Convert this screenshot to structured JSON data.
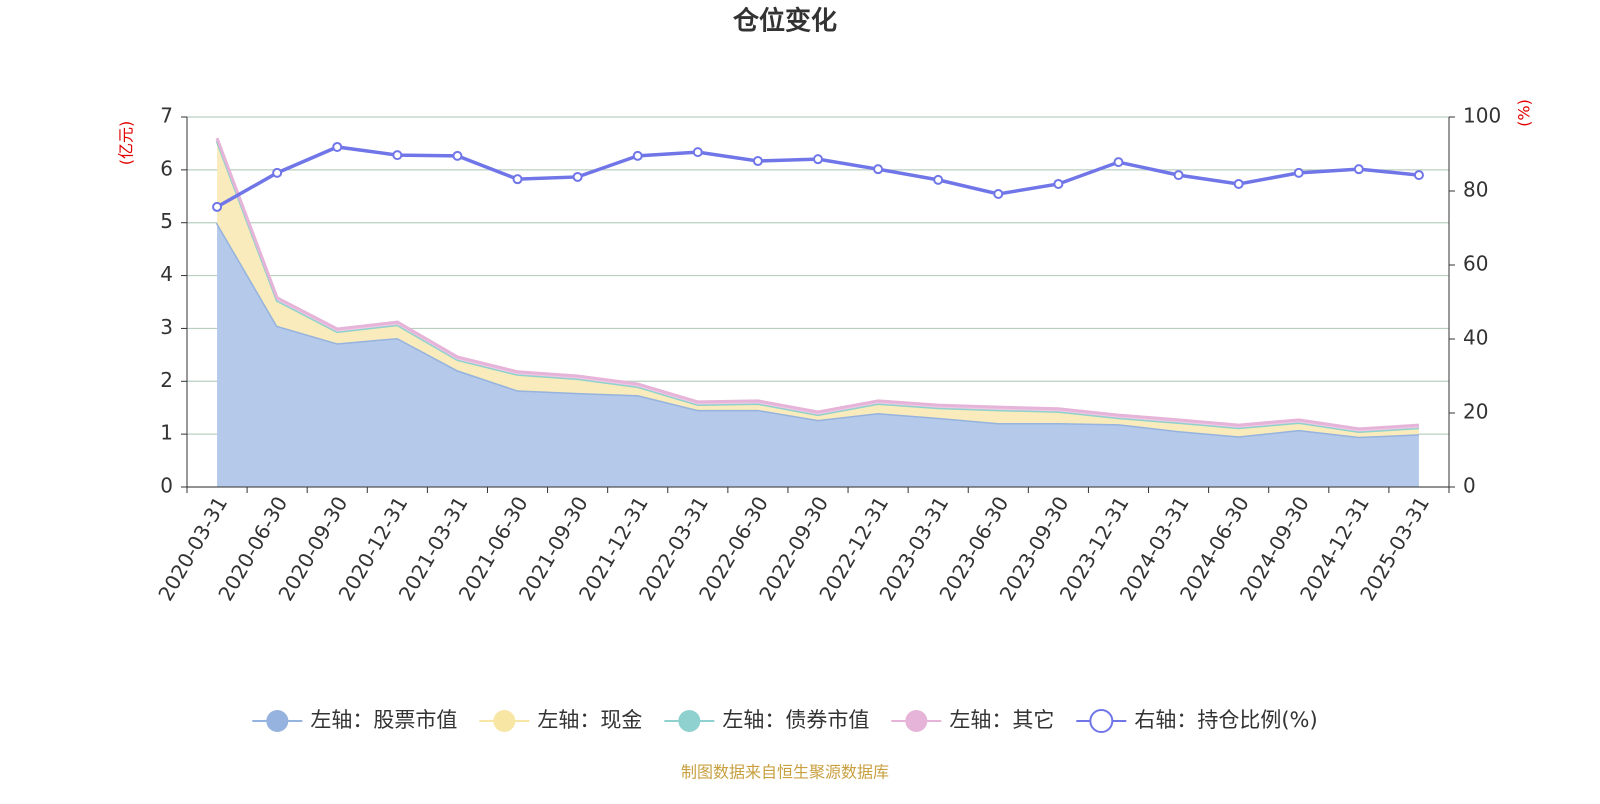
{
  "chart_data": {
    "type": "stacked-area-line",
    "title": "仓位变化",
    "y_label": "(亿元)",
    "y2_label": "(%)",
    "source": "制图数据来自恒生聚源数据库",
    "categories": [
      "2020-03-31",
      "2020-06-30",
      "2020-09-30",
      "2020-12-31",
      "2021-03-31",
      "2021-06-30",
      "2021-09-30",
      "2021-12-31",
      "2022-03-31",
      "2022-06-30",
      "2022-09-30",
      "2022-12-31",
      "2023-03-31",
      "2023-06-30",
      "2023-09-30",
      "2023-12-31",
      "2024-03-31",
      "2024-06-30",
      "2024-09-30",
      "2024-12-31",
      "2025-03-31"
    ],
    "ylim": [
      0,
      7
    ],
    "yticks": [
      0,
      1,
      2,
      3,
      4,
      5,
      6,
      7
    ],
    "y2lim": [
      0,
      100
    ],
    "y2ticks": [
      0,
      20,
      40,
      60,
      80,
      100
    ],
    "grid": true,
    "series": [
      {
        "name": "左轴：股票市值",
        "color": "#95b3de",
        "fill": "#b5c9ea",
        "type": "area",
        "values": [
          5.0,
          3.05,
          2.72,
          2.82,
          2.21,
          1.83,
          1.78,
          1.74,
          1.46,
          1.46,
          1.27,
          1.4,
          1.31,
          1.21,
          1.21,
          1.19,
          1.06,
          0.96,
          1.08,
          0.95,
          1.0
        ]
      },
      {
        "name": "左轴：现金",
        "color": "#f8e6a5",
        "fill": "#f9ebbb",
        "type": "area",
        "values": [
          1.55,
          0.48,
          0.22,
          0.25,
          0.2,
          0.3,
          0.27,
          0.16,
          0.1,
          0.12,
          0.1,
          0.18,
          0.19,
          0.25,
          0.22,
          0.12,
          0.16,
          0.16,
          0.14,
          0.1,
          0.12
        ]
      },
      {
        "name": "左轴：债券市值",
        "color": "#8fd1cf",
        "fill": "#a9dcda",
        "type": "area",
        "values": [
          0,
          0,
          0,
          0,
          0,
          0,
          0,
          0,
          0,
          0,
          0,
          0,
          0,
          0,
          0,
          0,
          0,
          0,
          0,
          0,
          0
        ]
      },
      {
        "name": "左轴：其它",
        "color": "#e6b4d8",
        "fill": "#efc9e4",
        "type": "area",
        "values": [
          0.05,
          0.05,
          0.05,
          0.05,
          0.05,
          0.05,
          0.05,
          0.05,
          0.05,
          0.05,
          0.05,
          0.05,
          0.05,
          0.05,
          0.05,
          0.05,
          0.05,
          0.05,
          0.05,
          0.05,
          0.05
        ]
      },
      {
        "name": "右轴：持仓比例(%)",
        "color": "#7076e8",
        "type": "line",
        "axis": "y2",
        "values": [
          75.7,
          84.9,
          91.9,
          89.7,
          89.5,
          83.2,
          83.8,
          89.5,
          90.5,
          88.1,
          88.6,
          85.9,
          83.0,
          79.2,
          81.9,
          87.8,
          84.3,
          81.9,
          84.9,
          85.9,
          84.3
        ]
      }
    ]
  }
}
